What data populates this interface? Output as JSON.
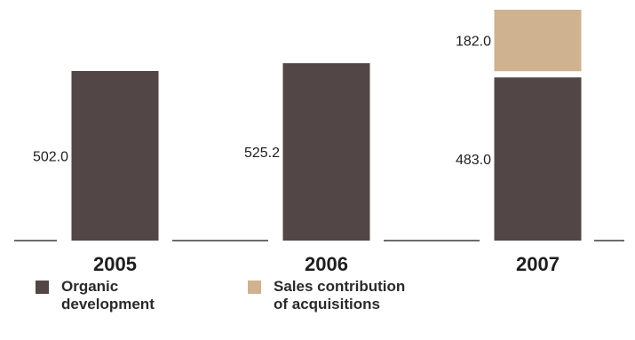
{
  "chart_data": {
    "type": "bar",
    "stacked": true,
    "categories": [
      "2005",
      "2006",
      "2007"
    ],
    "series": [
      {
        "name": "Organic development",
        "values": [
          502.0,
          525.2,
          483.0
        ],
        "color": "#524646"
      },
      {
        "name": "Sales contribution of acquisitions",
        "values": [
          0,
          0,
          182.0
        ],
        "color": "#cfb290"
      }
    ],
    "value_labels": [
      {
        "category": "2005",
        "series": "Organic development",
        "text": "502.0"
      },
      {
        "category": "2006",
        "series": "Organic development",
        "text": "525.2"
      },
      {
        "category": "2007",
        "series": "Organic development",
        "text": "483.0"
      },
      {
        "category": "2007",
        "series": "Sales contribution of acquisitions",
        "text": "182.0"
      }
    ],
    "legend": {
      "position": "bottom-left",
      "items": [
        {
          "label": "Organic\ndevelopment",
          "color": "#524646"
        },
        {
          "label": "Sales contribution\nof acquisitions",
          "color": "#cfb290"
        }
      ]
    },
    "title": "",
    "xlabel": "",
    "ylabel": "",
    "grid": false
  }
}
